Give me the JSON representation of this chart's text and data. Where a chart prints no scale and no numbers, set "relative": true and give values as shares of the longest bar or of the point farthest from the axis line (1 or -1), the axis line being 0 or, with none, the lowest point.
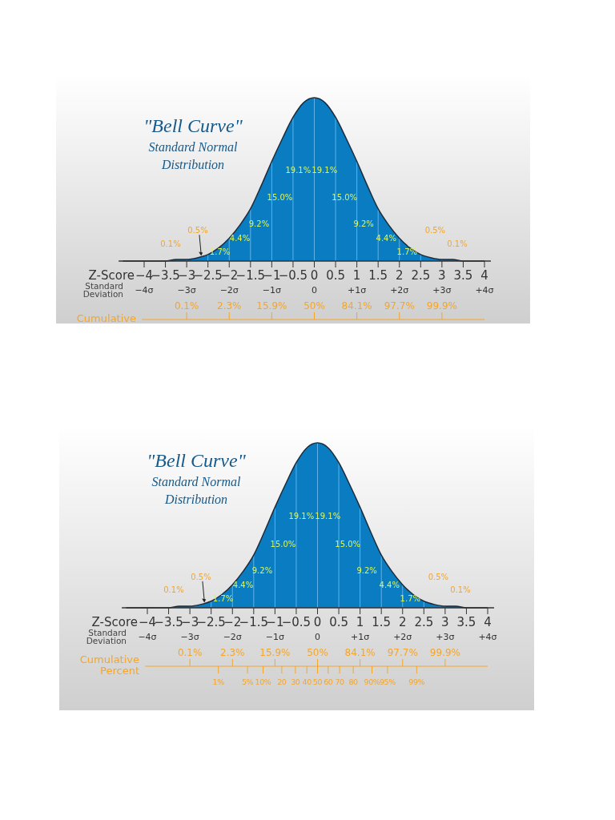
{
  "chart_data": [
    {
      "type": "area",
      "relative": true,
      "title": "\"Bell Curve\"",
      "subtitle": "Standard Normal Distribution",
      "xlabel": "Z-Score",
      "grid": "x",
      "x": [
        -4.5,
        -4.25,
        -4,
        -3.75,
        -3.5,
        -3.25,
        -3,
        -2.75,
        -2.5,
        -2.25,
        -2,
        -1.75,
        -1.5,
        -1.25,
        -1,
        -0.75,
        -0.5,
        -0.25,
        0,
        0.25,
        0.5,
        0.75,
        1,
        1.25,
        1.5,
        1.75,
        2,
        2.25,
        2.5,
        2.75,
        3,
        3.25,
        3.5,
        3.75,
        4
      ],
      "series": [
        {
          "color": "#0a7cc2",
          "values": [
            0,
            0,
            0,
            0,
            0,
            0.01,
            0.01,
            0.02,
            0.04,
            0.08,
            0.14,
            0.22,
            0.32,
            0.46,
            0.61,
            0.75,
            0.88,
            0.97,
            1,
            0.97,
            0.88,
            0.75,
            0.61,
            0.46,
            0.32,
            0.22,
            0.14,
            0.08,
            0.04,
            0.02,
            0.01,
            0.01,
            0,
            0,
            0
          ]
        }
      ],
      "xlim": [
        -4.6,
        4.15
      ],
      "xticks": [
        {
          "value": -4,
          "label": "−4"
        },
        {
          "value": -3.5,
          "label": "−3.5"
        },
        {
          "value": -3,
          "label": "−3"
        },
        {
          "value": -2.5,
          "label": "−2.5"
        },
        {
          "value": -2,
          "label": "−2"
        },
        {
          "value": -1.5,
          "label": "−1.5"
        },
        {
          "value": -1,
          "label": "−1"
        },
        {
          "value": -0.5,
          "label": "−0.5"
        },
        0,
        0.5,
        1,
        1.5,
        2,
        2.5,
        3,
        3.5,
        4
      ],
      "annotations": [
        "19.1%",
        "19.1%",
        "15.0%",
        "15.0%",
        "9.2%",
        "9.2%",
        "4.4%",
        "4.4%",
        "1.7%",
        "1.7%",
        "0.5%",
        "0.5%",
        "0.1%",
        "0.1%",
        "Standard Deviation",
        "−4σ",
        "−3σ",
        "−2σ",
        "−1σ",
        "0",
        "+1σ",
        "+2σ",
        "+3σ",
        "+4σ",
        "Cumulative",
        "0.1%",
        "2.3%",
        "15.9%",
        "50%",
        "84.1%",
        "97.7%",
        "99.9%"
      ]
    },
    {
      "type": "area",
      "relative": true,
      "title": "\"Bell Curve\"",
      "subtitle": "Standard Normal Distribution",
      "xlabel": "Z-Score",
      "grid": "x",
      "x": [
        -4.5,
        -4.25,
        -4,
        -3.75,
        -3.5,
        -3.25,
        -3,
        -2.75,
        -2.5,
        -2.25,
        -2,
        -1.75,
        -1.5,
        -1.25,
        -1,
        -0.75,
        -0.5,
        -0.25,
        0,
        0.25,
        0.5,
        0.75,
        1,
        1.25,
        1.5,
        1.75,
        2,
        2.25,
        2.5,
        2.75,
        3,
        3.25,
        3.5,
        3.75,
        4
      ],
      "series": [
        {
          "color": "#0a7cc2",
          "values": [
            0,
            0,
            0,
            0,
            0,
            0.01,
            0.01,
            0.02,
            0.04,
            0.08,
            0.14,
            0.22,
            0.32,
            0.46,
            0.61,
            0.75,
            0.88,
            0.97,
            1,
            0.97,
            0.88,
            0.75,
            0.61,
            0.46,
            0.32,
            0.22,
            0.14,
            0.08,
            0.04,
            0.02,
            0.01,
            0.01,
            0,
            0,
            0
          ]
        }
      ],
      "xlim": [
        -4.6,
        4.15
      ],
      "xticks": [
        {
          "value": -4,
          "label": "−4"
        },
        {
          "value": -3.5,
          "label": "−3.5"
        },
        {
          "value": -3,
          "label": "−3"
        },
        {
          "value": -2.5,
          "label": "−2.5"
        },
        {
          "value": -2,
          "label": "−2"
        },
        {
          "value": -1.5,
          "label": "−1.5"
        },
        {
          "value": -1,
          "label": "−1"
        },
        {
          "value": -0.5,
          "label": "−0.5"
        },
        0,
        0.5,
        1,
        1.5,
        2,
        2.5,
        3,
        3.5,
        4
      ],
      "annotations": [
        "19.1%",
        "19.1%",
        "15.0%",
        "15.0%",
        "9.2%",
        "9.2%",
        "4.4%",
        "4.4%",
        "1.7%",
        "1.7%",
        "0.5%",
        "0.5%",
        "0.1%",
        "0.1%",
        "Standard Deviation",
        "−4σ",
        "−3σ",
        "−2σ",
        "−1σ",
        "0",
        "+1σ",
        "+2σ",
        "+3σ",
        "+4σ",
        "Cumulative Percent",
        "0.1%",
        "2.3%",
        "15.9%",
        "50%",
        "84.1%",
        "97.7%",
        "99.9%",
        "1%",
        "5%",
        "10%",
        "20",
        "30",
        "40",
        "50",
        "60",
        "70",
        "80",
        "90%",
        "95%",
        "99%"
      ]
    }
  ]
}
